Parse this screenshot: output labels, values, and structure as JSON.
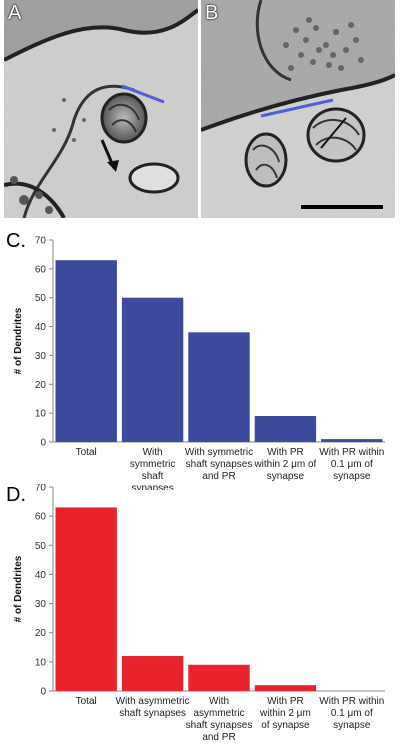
{
  "panels": {
    "a": {
      "label": "A"
    },
    "b": {
      "label": "B"
    }
  },
  "colors": {
    "blue_bar": "#3b4a9c",
    "red_bar": "#e8232a",
    "axis": "#888888",
    "annotation_line": "#4f5fd6"
  },
  "chart_data": [
    {
      "type": "bar",
      "panel_label": "C.",
      "ylabel": "# of Dendrites",
      "ylim": [
        0,
        70
      ],
      "yticks": [
        0,
        10,
        20,
        30,
        40,
        50,
        60,
        70
      ],
      "color": "#3b4a9c",
      "categories": [
        [
          "Total"
        ],
        [
          "With",
          "symmetric",
          "shaft",
          "synapses"
        ],
        [
          "With symmetric",
          "shaft synapses",
          "and PR"
        ],
        [
          "With PR",
          "within 2 μm of",
          "synapse"
        ],
        [
          "With PR within",
          "0.1 μm of",
          "synapse"
        ]
      ],
      "values": [
        63,
        50,
        38,
        9,
        1
      ],
      "grid": false,
      "legend": "none"
    },
    {
      "type": "bar",
      "panel_label": "D.",
      "ylabel": "# of Dendrites",
      "ylim": [
        0,
        70
      ],
      "yticks": [
        0,
        10,
        20,
        30,
        40,
        50,
        60,
        70
      ],
      "color": "#e8232a",
      "categories": [
        [
          "Total"
        ],
        [
          "With asymmetric",
          "shaft synapses"
        ],
        [
          "With",
          "asymmetric",
          "shaft synapses",
          "and PR"
        ],
        [
          "With PR",
          "within 2 μm",
          "of synapse"
        ],
        [
          "With PR within",
          "0.1 μm of",
          "synapse"
        ]
      ],
      "values": [
        63,
        12,
        9,
        2,
        0
      ],
      "grid": false,
      "legend": "none"
    }
  ]
}
